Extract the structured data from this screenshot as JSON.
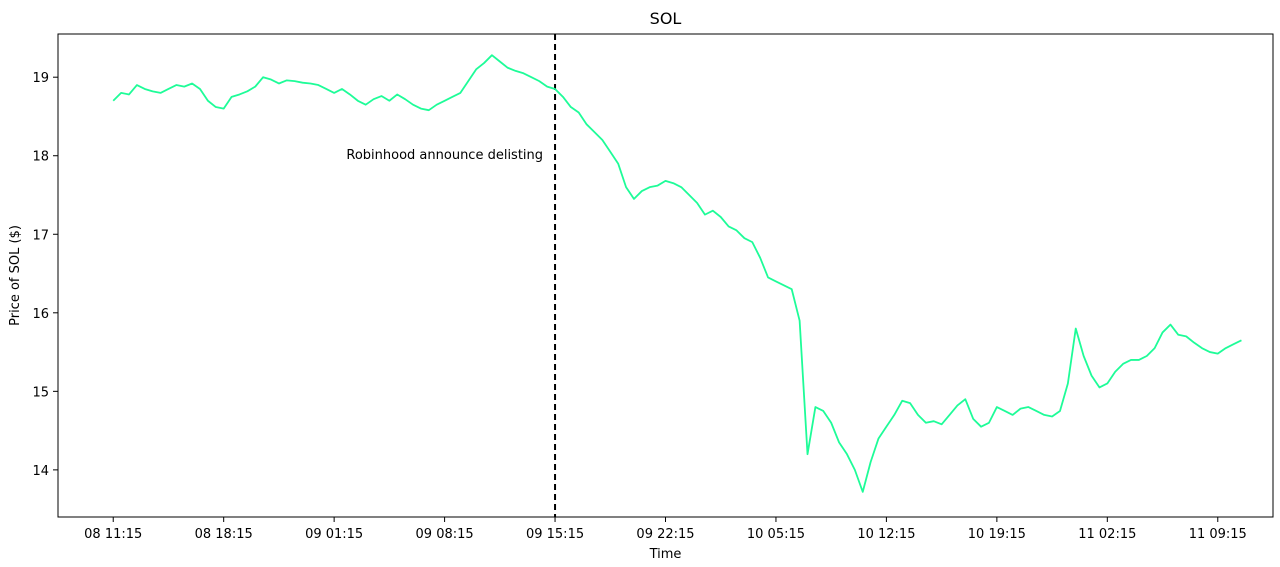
{
  "chart_data": {
    "type": "line",
    "title": "SOL",
    "xlabel": "Time",
    "ylabel": "Price of SOL ($)",
    "ylim": [
      13.4,
      19.55
    ],
    "yticks": [
      14,
      15,
      16,
      17,
      18,
      19
    ],
    "xticks": [
      "08 11:15",
      "08 18:15",
      "09 01:15",
      "09 08:15",
      "09 15:15",
      "09 22:15",
      "10 05:15",
      "10 12:15",
      "10 19:15",
      "11 02:15",
      "11 09:15"
    ],
    "xlim_hours": [
      -3.5,
      73.5
    ],
    "grid": false,
    "legend": "none",
    "line_color": "#1efc98",
    "event_line": {
      "x_label": "09 15:15",
      "style": "dashed",
      "color": "#000000"
    },
    "annotation": {
      "text": "Robinhood announce delisting",
      "x_label": "09 15:15",
      "y": 18.02
    },
    "series": [
      {
        "x_hours": [
          0,
          0.5,
          1,
          1.5,
          2,
          2.5,
          3,
          3.5,
          4,
          4.5,
          5,
          5.5,
          6,
          6.5,
          7,
          7.5,
          8,
          8.5,
          9,
          9.5,
          10,
          10.5,
          11,
          11.5,
          12,
          12.5,
          13,
          13.5,
          14,
          14.5,
          15,
          15.5,
          16,
          16.5,
          17,
          17.5,
          18,
          18.5,
          19,
          19.5,
          20,
          20.5,
          21,
          21.5,
          22,
          22.5,
          23,
          23.5,
          24,
          24.5,
          25,
          25.5,
          26,
          26.5,
          27,
          27.5,
          28,
          28.5,
          29,
          29.5,
          30,
          30.5,
          31,
          31.5,
          32,
          32.5,
          33,
          33.5,
          34,
          34.5,
          35,
          35.5,
          36,
          36.5,
          37,
          37.5,
          38,
          38.5,
          39,
          39.5,
          40,
          40.5,
          41,
          41.5,
          42,
          42.5,
          43,
          43.5,
          44,
          44.5,
          45,
          45.5,
          46,
          46.5,
          47,
          47.5,
          48,
          48.5,
          49,
          49.5,
          50,
          50.5,
          51,
          51.5,
          52,
          52.5,
          53,
          53.5,
          54,
          54.5,
          55,
          55.5,
          56,
          56.5,
          57,
          57.5,
          58,
          58.5,
          59,
          59.5,
          60,
          60.5,
          61,
          61.5,
          62,
          62.5,
          63,
          63.5,
          64,
          64.5,
          65,
          65.5,
          66,
          66.5,
          67,
          67.5,
          68,
          68.5,
          69,
          69.5,
          70,
          70.5,
          71,
          71.5
        ],
        "values": [
          18.7,
          18.8,
          18.78,
          18.9,
          18.85,
          18.82,
          18.8,
          18.85,
          18.9,
          18.88,
          18.92,
          18.85,
          18.7,
          18.62,
          18.6,
          18.75,
          18.78,
          18.82,
          18.88,
          19.0,
          18.97,
          18.92,
          18.96,
          18.95,
          18.93,
          18.92,
          18.9,
          18.85,
          18.8,
          18.85,
          18.78,
          18.7,
          18.65,
          18.72,
          18.76,
          18.7,
          18.78,
          18.72,
          18.65,
          18.6,
          18.58,
          18.65,
          18.7,
          18.75,
          18.8,
          18.95,
          19.1,
          19.18,
          19.28,
          19.2,
          19.12,
          19.08,
          19.05,
          19.0,
          18.95,
          18.88,
          18.85,
          18.75,
          18.62,
          18.55,
          18.4,
          18.3,
          18.2,
          18.05,
          17.9,
          17.6,
          17.45,
          17.55,
          17.6,
          17.62,
          17.68,
          17.65,
          17.6,
          17.5,
          17.4,
          17.25,
          17.3,
          17.22,
          17.1,
          17.05,
          16.95,
          16.9,
          16.7,
          16.45,
          16.4,
          16.35,
          16.3,
          15.9,
          14.2,
          14.8,
          14.75,
          14.6,
          14.35,
          14.2,
          14.0,
          13.72,
          14.1,
          14.4,
          14.55,
          14.7,
          14.88,
          14.85,
          14.7,
          14.6,
          14.62,
          14.58,
          14.7,
          14.82,
          14.9,
          14.65,
          14.55,
          14.6,
          14.8,
          14.75,
          14.7,
          14.78,
          14.8,
          14.75,
          14.7,
          14.68,
          14.75,
          15.1,
          15.8,
          15.45,
          15.2,
          15.05,
          15.1,
          15.25,
          15.35,
          15.4,
          15.4,
          15.45,
          15.55,
          15.75,
          15.85,
          15.72,
          15.7,
          15.62,
          15.55,
          15.5,
          15.48,
          15.55,
          15.6,
          15.65
        ]
      }
    ]
  }
}
